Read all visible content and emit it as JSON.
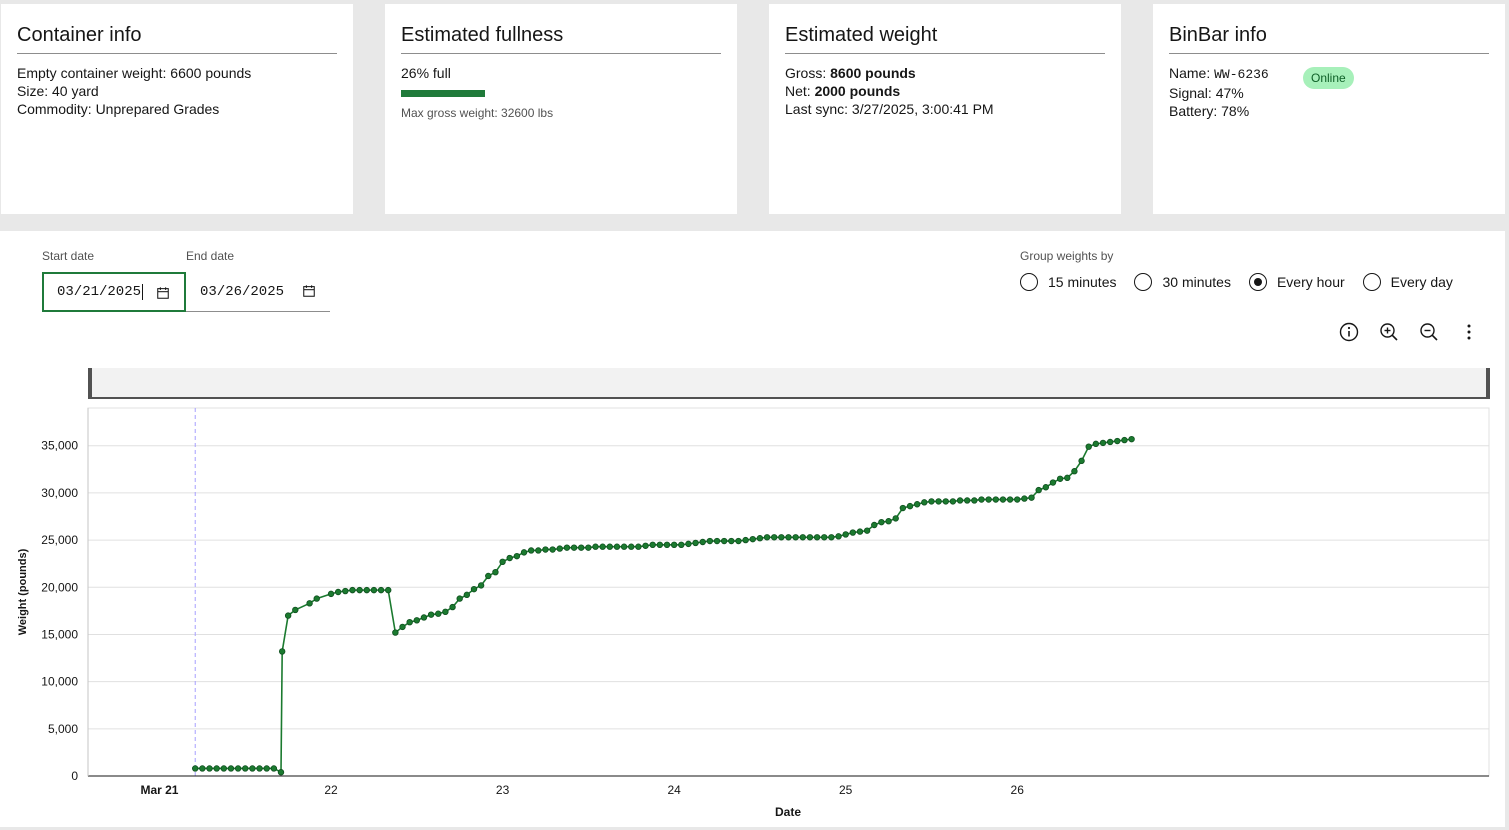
{
  "cards": {
    "container": {
      "title": "Container info",
      "empty_weight": "Empty container weight: 6600 pounds",
      "size": "Size: 40 yard",
      "commodity": "Commodity: Unprepared Grades"
    },
    "fullness": {
      "title": "Estimated fullness",
      "percent_text": "26% full",
      "percent_value": 0.26,
      "max_gross": "Max gross weight: 32600 lbs"
    },
    "weight": {
      "title": "Estimated weight",
      "gross_label": "Gross: ",
      "gross_value": "8600 pounds",
      "net_label": "Net: ",
      "net_value": "2000 pounds",
      "last_sync": "Last sync: 3/27/2025, 3:00:41 PM"
    },
    "binbar": {
      "title": "BinBar info",
      "name_label": "Name: ",
      "name_value": "WW-6236",
      "signal": "Signal: 47%",
      "battery": "Battery: 78%",
      "status": "Online"
    }
  },
  "filters": {
    "start_label": "Start date",
    "start_value": "03/21/2025",
    "end_label": "End date",
    "end_value": "03/26/2025",
    "group_label": "Group weights by",
    "options": [
      "15 minutes",
      "30 minutes",
      "Every hour",
      "Every day"
    ],
    "selected": "Every hour"
  },
  "toolbar": {
    "icons": [
      "info-icon",
      "zoom-in-icon",
      "zoom-out-icon",
      "overflow-menu-icon"
    ]
  },
  "colors": {
    "accent": "#1f7a3a",
    "series": "#1b7a2f",
    "badge_bg": "#a7f0ba"
  },
  "chart_data": {
    "type": "line",
    "xlabel": "Date",
    "ylabel": "Weight (pounds)",
    "ylim": [
      0,
      39000
    ],
    "y_ticks": [
      "0",
      "5,000",
      "10,000",
      "15,000",
      "20,000",
      "25,000",
      "30,000",
      "35,000"
    ],
    "x_ticks": [
      "Mar 21",
      "22",
      "23",
      "24",
      "25",
      "26"
    ],
    "x_range": [
      "2025-03-20T14:00",
      "2025-03-28T18:00"
    ],
    "grid": true,
    "series": [
      {
        "values": [
          [
            "2025-03-21T05:00",
            800
          ],
          [
            "2025-03-21T06:00",
            800
          ],
          [
            "2025-03-21T07:00",
            800
          ],
          [
            "2025-03-21T08:00",
            800
          ],
          [
            "2025-03-21T09:00",
            800
          ],
          [
            "2025-03-21T10:00",
            800
          ],
          [
            "2025-03-21T11:00",
            800
          ],
          [
            "2025-03-21T12:00",
            800
          ],
          [
            "2025-03-21T13:00",
            800
          ],
          [
            "2025-03-21T14:00",
            800
          ],
          [
            "2025-03-21T15:00",
            800
          ],
          [
            "2025-03-21T16:00",
            800
          ],
          [
            "2025-03-21T17:00",
            400
          ],
          [
            "2025-03-21T17:10",
            13200
          ],
          [
            "2025-03-21T18:00",
            17000
          ],
          [
            "2025-03-21T19:00",
            17600
          ],
          [
            "2025-03-21T21:00",
            18300
          ],
          [
            "2025-03-21T22:00",
            18800
          ],
          [
            "2025-03-22T00:00",
            19300
          ],
          [
            "2025-03-22T01:00",
            19500
          ],
          [
            "2025-03-22T02:00",
            19600
          ],
          [
            "2025-03-22T03:00",
            19700
          ],
          [
            "2025-03-22T04:00",
            19700
          ],
          [
            "2025-03-22T05:00",
            19700
          ],
          [
            "2025-03-22T06:00",
            19700
          ],
          [
            "2025-03-22T07:00",
            19700
          ],
          [
            "2025-03-22T08:00",
            19700
          ],
          [
            "2025-03-22T09:00",
            15200
          ],
          [
            "2025-03-22T10:00",
            15800
          ],
          [
            "2025-03-22T11:00",
            16300
          ],
          [
            "2025-03-22T12:00",
            16500
          ],
          [
            "2025-03-22T13:00",
            16800
          ],
          [
            "2025-03-22T14:00",
            17100
          ],
          [
            "2025-03-22T15:00",
            17200
          ],
          [
            "2025-03-22T16:00",
            17400
          ],
          [
            "2025-03-22T17:00",
            17900
          ],
          [
            "2025-03-22T18:00",
            18800
          ],
          [
            "2025-03-22T19:00",
            19200
          ],
          [
            "2025-03-22T20:00",
            19800
          ],
          [
            "2025-03-22T21:00",
            20200
          ],
          [
            "2025-03-22T22:00",
            21200
          ],
          [
            "2025-03-22T23:00",
            21600
          ],
          [
            "2025-03-23T00:00",
            22700
          ],
          [
            "2025-03-23T01:00",
            23100
          ],
          [
            "2025-03-23T02:00",
            23300
          ],
          [
            "2025-03-23T03:00",
            23700
          ],
          [
            "2025-03-23T04:00",
            23900
          ],
          [
            "2025-03-23T05:00",
            23900
          ],
          [
            "2025-03-23T06:00",
            24000
          ],
          [
            "2025-03-23T07:00",
            24000
          ],
          [
            "2025-03-23T08:00",
            24100
          ],
          [
            "2025-03-23T09:00",
            24200
          ],
          [
            "2025-03-23T10:00",
            24200
          ],
          [
            "2025-03-23T11:00",
            24200
          ],
          [
            "2025-03-23T12:00",
            24200
          ],
          [
            "2025-03-23T13:00",
            24300
          ],
          [
            "2025-03-23T14:00",
            24300
          ],
          [
            "2025-03-23T15:00",
            24300
          ],
          [
            "2025-03-23T16:00",
            24300
          ],
          [
            "2025-03-23T17:00",
            24300
          ],
          [
            "2025-03-23T18:00",
            24300
          ],
          [
            "2025-03-23T19:00",
            24300
          ],
          [
            "2025-03-23T20:00",
            24400
          ],
          [
            "2025-03-23T21:00",
            24500
          ],
          [
            "2025-03-23T22:00",
            24500
          ],
          [
            "2025-03-23T23:00",
            24500
          ],
          [
            "2025-03-24T00:00",
            24500
          ],
          [
            "2025-03-24T01:00",
            24500
          ],
          [
            "2025-03-24T02:00",
            24600
          ],
          [
            "2025-03-24T03:00",
            24700
          ],
          [
            "2025-03-24T04:00",
            24800
          ],
          [
            "2025-03-24T05:00",
            24900
          ],
          [
            "2025-03-24T06:00",
            24900
          ],
          [
            "2025-03-24T07:00",
            24900
          ],
          [
            "2025-03-24T08:00",
            24900
          ],
          [
            "2025-03-24T09:00",
            24900
          ],
          [
            "2025-03-24T10:00",
            25000
          ],
          [
            "2025-03-24T11:00",
            25100
          ],
          [
            "2025-03-24T12:00",
            25200
          ],
          [
            "2025-03-24T13:00",
            25300
          ],
          [
            "2025-03-24T14:00",
            25300
          ],
          [
            "2025-03-24T15:00",
            25300
          ],
          [
            "2025-03-24T16:00",
            25300
          ],
          [
            "2025-03-24T17:00",
            25300
          ],
          [
            "2025-03-24T18:00",
            25300
          ],
          [
            "2025-03-24T19:00",
            25300
          ],
          [
            "2025-03-24T20:00",
            25300
          ],
          [
            "2025-03-24T21:00",
            25300
          ],
          [
            "2025-03-24T22:00",
            25300
          ],
          [
            "2025-03-24T23:00",
            25400
          ],
          [
            "2025-03-25T00:00",
            25600
          ],
          [
            "2025-03-25T01:00",
            25800
          ],
          [
            "2025-03-25T02:00",
            25900
          ],
          [
            "2025-03-25T03:00",
            26000
          ],
          [
            "2025-03-25T04:00",
            26600
          ],
          [
            "2025-03-25T05:00",
            26900
          ],
          [
            "2025-03-25T06:00",
            27000
          ],
          [
            "2025-03-25T07:00",
            27300
          ],
          [
            "2025-03-25T08:00",
            28400
          ],
          [
            "2025-03-25T09:00",
            28600
          ],
          [
            "2025-03-25T10:00",
            28800
          ],
          [
            "2025-03-25T11:00",
            29000
          ],
          [
            "2025-03-25T12:00",
            29100
          ],
          [
            "2025-03-25T13:00",
            29100
          ],
          [
            "2025-03-25T14:00",
            29100
          ],
          [
            "2025-03-25T15:00",
            29100
          ],
          [
            "2025-03-25T16:00",
            29200
          ],
          [
            "2025-03-25T17:00",
            29200
          ],
          [
            "2025-03-25T18:00",
            29200
          ],
          [
            "2025-03-25T19:00",
            29300
          ],
          [
            "2025-03-25T20:00",
            29300
          ],
          [
            "2025-03-25T21:00",
            29300
          ],
          [
            "2025-03-25T22:00",
            29300
          ],
          [
            "2025-03-25T23:00",
            29300
          ],
          [
            "2025-03-26T00:00",
            29300
          ],
          [
            "2025-03-26T01:00",
            29400
          ],
          [
            "2025-03-26T02:00",
            29500
          ],
          [
            "2025-03-26T03:00",
            30300
          ],
          [
            "2025-03-26T04:00",
            30600
          ],
          [
            "2025-03-26T05:00",
            31100
          ],
          [
            "2025-03-26T06:00",
            31500
          ],
          [
            "2025-03-26T07:00",
            31600
          ],
          [
            "2025-03-26T08:00",
            32300
          ],
          [
            "2025-03-26T09:00",
            33400
          ],
          [
            "2025-03-26T10:00",
            34900
          ],
          [
            "2025-03-26T11:00",
            35200
          ],
          [
            "2025-03-26T12:00",
            35300
          ],
          [
            "2025-03-26T13:00",
            35400
          ],
          [
            "2025-03-26T14:00",
            35500
          ],
          [
            "2025-03-26T15:00",
            35600
          ],
          [
            "2025-03-26T16:00",
            35700
          ]
        ]
      }
    ],
    "reference_line_x": "2025-03-21T05:00"
  }
}
